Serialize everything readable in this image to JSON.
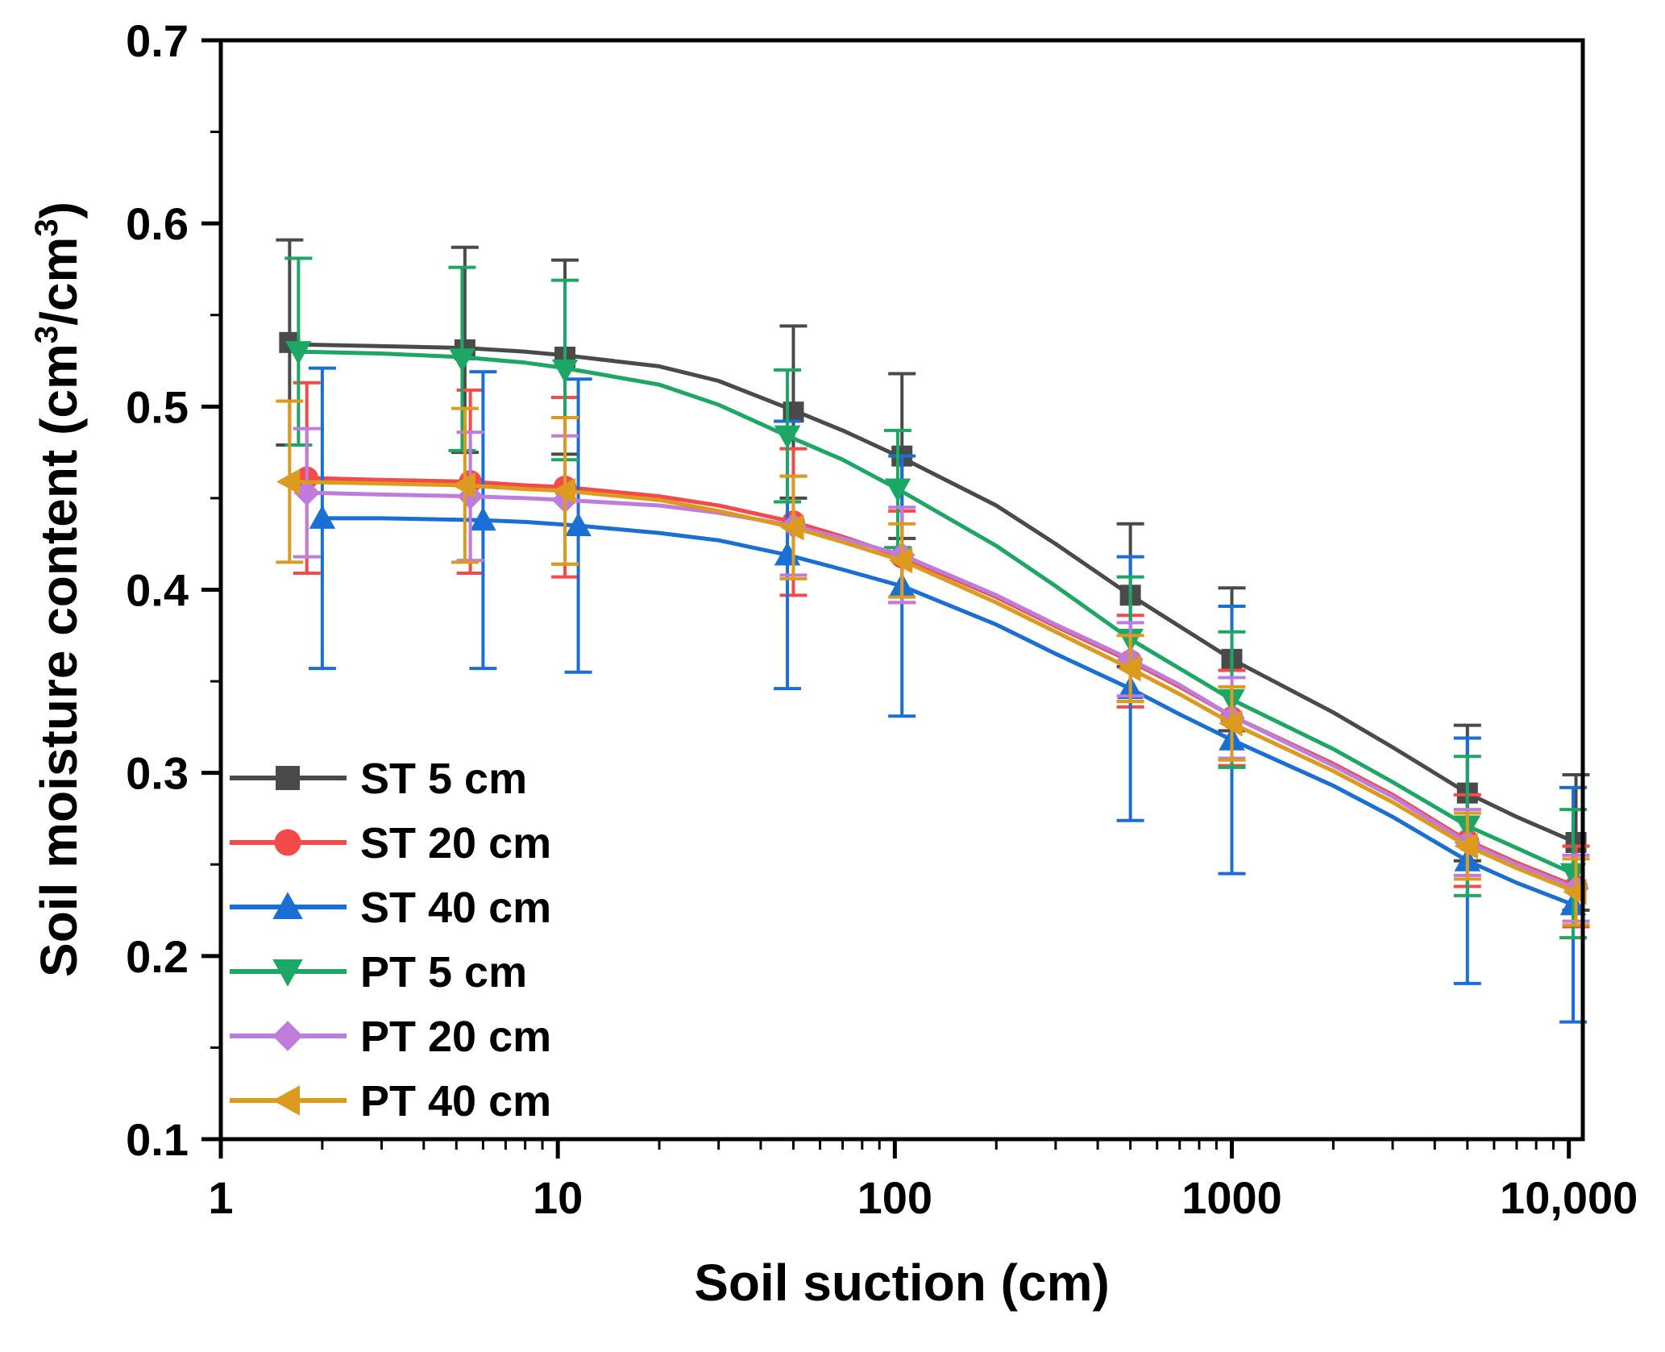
{
  "chart_data": {
    "type": "line",
    "title": "",
    "xlabel": "Soil suction (cm)",
    "ylabel_prefix": "Soil moisture content (cm",
    "ylabel_mid": "/cm",
    "ylabel_suffix": ")",
    "ylabel_sup": "3",
    "xscale": "log",
    "xlim": [
      1,
      11000
    ],
    "ylim": [
      0.1,
      0.7
    ],
    "xticks": [
      {
        "value": 1,
        "label": "1"
      },
      {
        "value": 10,
        "label": "10"
      },
      {
        "value": 100,
        "label": "100"
      },
      {
        "value": 1000,
        "label": "1000"
      },
      {
        "value": 10000,
        "label": "10,000"
      }
    ],
    "yticks": [
      {
        "value": 0.1,
        "label": "0.1"
      },
      {
        "value": 0.2,
        "label": "0.2"
      },
      {
        "value": 0.3,
        "label": "0.3"
      },
      {
        "value": 0.4,
        "label": "0.4"
      },
      {
        "value": 0.5,
        "label": "0.5"
      },
      {
        "value": 0.6,
        "label": "0.6"
      },
      {
        "value": 0.7,
        "label": "0.7"
      }
    ],
    "grid": false,
    "legend_position": "bottom-left",
    "series": [
      {
        "name": "ST 5 cm",
        "color": "#4a4a4a",
        "marker": "square",
        "x": [
          1.6,
          5.3,
          10.5,
          50,
          105,
          500,
          1000,
          5000,
          10500
        ],
        "y": [
          0.535,
          0.531,
          0.527,
          0.497,
          0.473,
          0.397,
          0.362,
          0.289,
          0.262
        ],
        "err": [
          0.056,
          0.056,
          0.053,
          0.047,
          0.045,
          0.039,
          0.039,
          0.037,
          0.037
        ],
        "fit_x": [
          1.6,
          3,
          5.3,
          8,
          10.5,
          20,
          30,
          50,
          70,
          105,
          200,
          300,
          500,
          700,
          1000,
          2000,
          3000,
          5000,
          7000,
          10500
        ],
        "fit_y": [
          0.534,
          0.533,
          0.532,
          0.53,
          0.528,
          0.522,
          0.514,
          0.498,
          0.487,
          0.472,
          0.446,
          0.425,
          0.397,
          0.38,
          0.362,
          0.333,
          0.314,
          0.289,
          0.276,
          0.262
        ]
      },
      {
        "name": "ST 20 cm",
        "color": "#f44a4a",
        "marker": "circle",
        "x": [
          1.8,
          5.5,
          10.5,
          50,
          105,
          500,
          1000,
          5000,
          10500
        ],
        "y": [
          0.461,
          0.459,
          0.456,
          0.437,
          0.418,
          0.361,
          0.33,
          0.263,
          0.238
        ],
        "err": [
          0.052,
          0.05,
          0.049,
          0.04,
          0.025,
          0.025,
          0.026,
          0.025,
          0.022
        ],
        "fit_x": [
          1.8,
          3,
          5.5,
          8,
          10.5,
          20,
          30,
          50,
          70,
          105,
          200,
          300,
          500,
          700,
          1000,
          2000,
          3000,
          5000,
          7000,
          10500
        ],
        "fit_y": [
          0.461,
          0.46,
          0.459,
          0.457,
          0.456,
          0.451,
          0.446,
          0.437,
          0.429,
          0.418,
          0.396,
          0.38,
          0.361,
          0.347,
          0.331,
          0.305,
          0.288,
          0.263,
          0.251,
          0.238
        ]
      },
      {
        "name": "ST 40 cm",
        "color": "#1a6fd4",
        "marker": "triangle-up",
        "x": [
          2.0,
          6.0,
          11.5,
          48,
          105,
          500,
          1000,
          5000,
          10300
        ],
        "y": [
          0.439,
          0.438,
          0.435,
          0.419,
          0.402,
          0.346,
          0.318,
          0.252,
          0.228
        ],
        "err": [
          0.082,
          0.081,
          0.08,
          0.073,
          0.071,
          0.072,
          0.073,
          0.067,
          0.064
        ],
        "fit_x": [
          2.0,
          3,
          6.0,
          8,
          11.5,
          20,
          30,
          48,
          70,
          105,
          200,
          300,
          500,
          700,
          1000,
          2000,
          3000,
          5000,
          7000,
          10300
        ],
        "fit_y": [
          0.439,
          0.439,
          0.438,
          0.437,
          0.435,
          0.431,
          0.427,
          0.419,
          0.411,
          0.402,
          0.381,
          0.365,
          0.346,
          0.332,
          0.318,
          0.293,
          0.276,
          0.252,
          0.24,
          0.228
        ]
      },
      {
        "name": "PT 5 cm",
        "color": "#1ca764",
        "marker": "triangle-down",
        "x": [
          1.7,
          5.2,
          10.5,
          48,
          102,
          500,
          1000,
          5000,
          10300
        ],
        "y": [
          0.53,
          0.526,
          0.52,
          0.484,
          0.455,
          0.373,
          0.34,
          0.271,
          0.245
        ],
        "err": [
          0.051,
          0.05,
          0.049,
          0.036,
          0.032,
          0.034,
          0.037,
          0.038,
          0.035
        ],
        "fit_x": [
          1.7,
          3,
          5.2,
          8,
          10.5,
          20,
          30,
          48,
          70,
          102,
          200,
          300,
          500,
          700,
          1000,
          2000,
          3000,
          5000,
          7000,
          10300
        ],
        "fit_y": [
          0.53,
          0.529,
          0.527,
          0.524,
          0.521,
          0.512,
          0.501,
          0.484,
          0.471,
          0.455,
          0.424,
          0.402,
          0.373,
          0.357,
          0.34,
          0.313,
          0.295,
          0.271,
          0.259,
          0.245
        ]
      },
      {
        "name": "PT 20 cm",
        "color": "#c07cdc",
        "marker": "diamond",
        "x": [
          1.8,
          5.5,
          10.5,
          50,
          105,
          500,
          1000,
          5000,
          10500
        ],
        "y": [
          0.453,
          0.451,
          0.449,
          0.435,
          0.419,
          0.362,
          0.33,
          0.262,
          0.237
        ],
        "err": [
          0.035,
          0.035,
          0.035,
          0.027,
          0.026,
          0.02,
          0.022,
          0.018,
          0.018
        ],
        "fit_x": [
          1.8,
          3,
          5.5,
          8,
          10.5,
          20,
          30,
          50,
          70,
          105,
          200,
          300,
          500,
          700,
          1000,
          2000,
          3000,
          5000,
          7000,
          10500
        ],
        "fit_y": [
          0.453,
          0.452,
          0.451,
          0.45,
          0.449,
          0.446,
          0.442,
          0.435,
          0.428,
          0.419,
          0.397,
          0.381,
          0.362,
          0.348,
          0.331,
          0.304,
          0.287,
          0.262,
          0.25,
          0.237
        ]
      },
      {
        "name": "PT 40 cm",
        "color": "#dc9a1e",
        "marker": "triangle-left",
        "x": [
          1.6,
          5.3,
          10.5,
          50,
          105,
          500,
          1000,
          5000,
          10500
        ],
        "y": [
          0.459,
          0.457,
          0.454,
          0.434,
          0.416,
          0.357,
          0.327,
          0.26,
          0.235
        ],
        "err": [
          0.044,
          0.042,
          0.04,
          0.028,
          0.02,
          0.018,
          0.02,
          0.018,
          0.018
        ],
        "fit_x": [
          1.6,
          3,
          5.3,
          8,
          10.5,
          20,
          30,
          50,
          70,
          105,
          200,
          300,
          500,
          700,
          1000,
          2000,
          3000,
          5000,
          7000,
          10500
        ],
        "fit_y": [
          0.459,
          0.458,
          0.457,
          0.455,
          0.454,
          0.449,
          0.443,
          0.434,
          0.426,
          0.416,
          0.393,
          0.377,
          0.357,
          0.343,
          0.327,
          0.301,
          0.284,
          0.26,
          0.248,
          0.235
        ]
      }
    ]
  }
}
